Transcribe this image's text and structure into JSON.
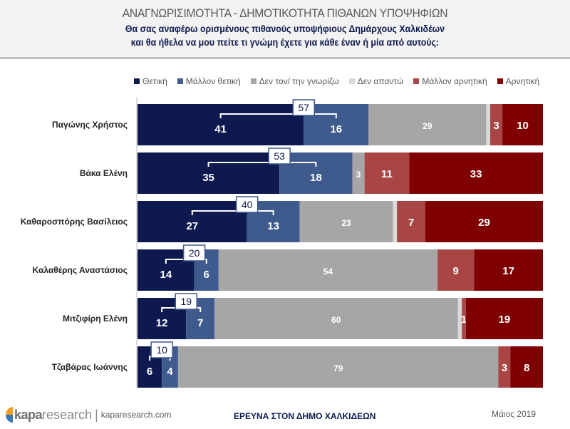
{
  "header": {
    "title": "ΑΝΑΓΝΩΡΙΣΙΜΟΤΗΤΑ - ΔΗΜΟΤΙΚΟΤΗΤΑ ΠΙΘΑΝΩΝ ΥΠΟΨΗΦΙΩΝ",
    "subtitle_line1": "Θα σας αναφέρω ορισμένους πιθανούς υποψήφιους Δημάρχους Χαλκιδέων",
    "subtitle_line2": "και θα ήθελα να μου πείτε τι γνώμη έχετε για κάθε έναν ή μία από αυτούς:"
  },
  "chart_data": {
    "type": "bar",
    "orientation": "horizontal-stacked-100",
    "title": "ΑΝΑΓΝΩΡΙΣΙΜΟΤΗΤΑ - ΔΗΜΟΤΙΚΟΤΗΤΑ ΠΙΘΑΝΩΝ ΥΠΟΨΗΦΙΩΝ",
    "xlabel": "",
    "ylabel": "",
    "xlim": [
      0,
      100
    ],
    "legend_position": "top",
    "categories": [
      "Παγώνης Χρήστος",
      "Βάκα Ελένη",
      "Καθαροσπόρης Βασίλειος",
      "Καλαθέρης Αναστάσιος",
      "Μιτζιφίρη Ελένη",
      "Τζαβάρας Ιωάννης"
    ],
    "series": [
      {
        "name": "Θετική",
        "color": "#0e1a4f",
        "values": [
          41,
          35,
          27,
          14,
          12,
          6
        ],
        "labels": [
          "41",
          "35",
          "27",
          "14",
          "12",
          "6"
        ]
      },
      {
        "name": "Μάλλον θετική",
        "color": "#3f5a8c",
        "values": [
          16,
          18,
          13,
          6,
          7,
          4
        ],
        "labels": [
          "16",
          "18",
          "13",
          "6",
          "7",
          "4"
        ]
      },
      {
        "name": "Δεν τον/ την γνωρίζω",
        "color": "#a6a6a6",
        "values": [
          29,
          3,
          23,
          54,
          60,
          79
        ],
        "labels": [
          "29",
          "3",
          "23",
          "54",
          "60",
          "79"
        ]
      },
      {
        "name": "Δεν απαντώ",
        "color": "#d9d9d9",
        "values": [
          1,
          0,
          1,
          0,
          1,
          0
        ],
        "labels": [
          "",
          "",
          "",
          "",
          "",
          ""
        ]
      },
      {
        "name": "Μάλλον αρνητική",
        "color": "#a94545",
        "values": [
          3,
          11,
          7,
          9,
          1,
          3
        ],
        "labels": [
          "3",
          "11",
          "7",
          "9",
          "1",
          "3"
        ]
      },
      {
        "name": "Αρνητική",
        "color": "#7f0000",
        "values": [
          10,
          33,
          29,
          17,
          19,
          8
        ],
        "labels": [
          "10",
          "33",
          "29",
          "17",
          "19",
          "8"
        ]
      }
    ],
    "positive_totals": [
      "57",
      "53",
      "40",
      "20",
      "19",
      "10"
    ]
  },
  "footer": {
    "logo_bold": "kapa",
    "logo_light": "research",
    "logo_separator": "|",
    "url": "kaparesearch.com",
    "survey_title": "ΕΡΕΥΝΑ ΣΤΟΝ ΔΗΜΟ ΧΑΛΚΙΔΕΩΝ",
    "date": "Μάιος 2019"
  }
}
